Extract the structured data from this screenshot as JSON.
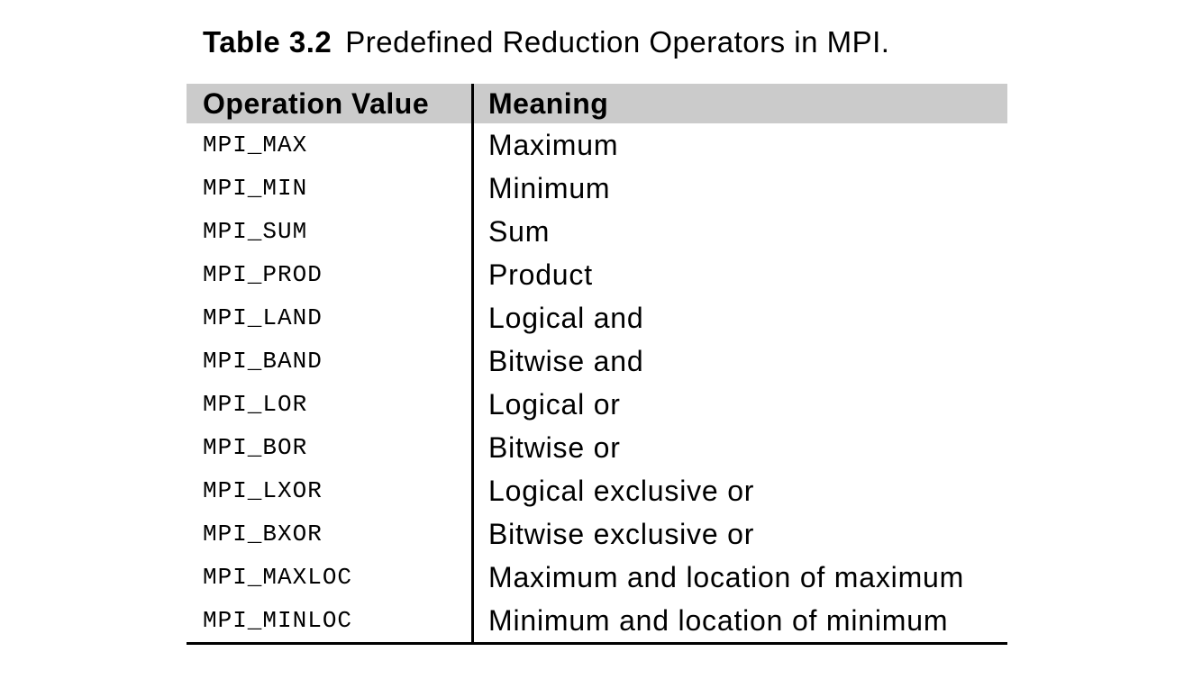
{
  "caption": {
    "label": "Table 3.2",
    "title": "Predefined Reduction Operators in MPI."
  },
  "table": {
    "header": {
      "operation": "Operation Value",
      "meaning": "Meaning"
    },
    "rows": [
      {
        "op": "MPI_MAX",
        "meaning": "Maximum"
      },
      {
        "op": "MPI_MIN",
        "meaning": "Minimum"
      },
      {
        "op": "MPI_SUM",
        "meaning": "Sum"
      },
      {
        "op": "MPI_PROD",
        "meaning": "Product"
      },
      {
        "op": "MPI_LAND",
        "meaning": "Logical and"
      },
      {
        "op": "MPI_BAND",
        "meaning": "Bitwise and"
      },
      {
        "op": "MPI_LOR",
        "meaning": "Logical or"
      },
      {
        "op": "MPI_BOR",
        "meaning": "Bitwise or"
      },
      {
        "op": "MPI_LXOR",
        "meaning": "Logical exclusive or"
      },
      {
        "op": "MPI_BXOR",
        "meaning": "Bitwise exclusive or"
      },
      {
        "op": "MPI_MAXLOC",
        "meaning": "Maximum and location of maximum"
      },
      {
        "op": "MPI_MINLOC",
        "meaning": "Minimum and location of minimum"
      }
    ]
  },
  "colors": {
    "page_bg": "#ffffff",
    "header_bg": "#cbcbcb",
    "rule": "#000000",
    "text": "#000000"
  }
}
